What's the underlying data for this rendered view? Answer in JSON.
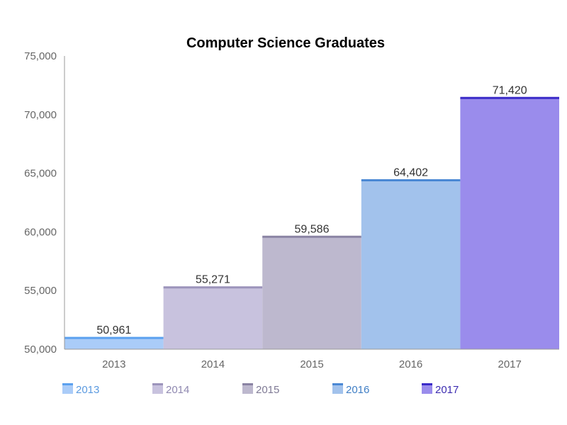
{
  "chart_data": {
    "type": "bar",
    "title": "Computer Science Graduates",
    "xlabel": "",
    "ylabel": "",
    "categories": [
      "2013",
      "2014",
      "2015",
      "2016",
      "2017"
    ],
    "values": [
      50961,
      55271,
      59586,
      64402,
      71420
    ],
    "value_labels": [
      "50,961",
      "55,271",
      "59,586",
      "64,402",
      "71,420"
    ],
    "ylim": [
      50000,
      75000
    ],
    "yticks": [
      50000,
      55000,
      60000,
      65000,
      70000,
      75000
    ],
    "ytick_labels": [
      "50,000",
      "55,000",
      "60,000",
      "65,000",
      "70,000",
      "75,000"
    ],
    "grid": false,
    "legend_position": "bottom",
    "legend": [
      "2013",
      "2014",
      "2015",
      "2016",
      "2017"
    ],
    "colors": {
      "fill": [
        "#aaccf8",
        "#c8c2de",
        "#bdb8ce",
        "#a2c2ec",
        "#9a8cec"
      ],
      "top": [
        "#5ba0ef",
        "#9c94bb",
        "#8a83a3",
        "#4a88d4",
        "#3b2bc8"
      ],
      "legend_text": [
        "#5b9ae0",
        "#8f88b0",
        "#7f7a95",
        "#3f7ec5",
        "#3b2bb0"
      ]
    }
  }
}
